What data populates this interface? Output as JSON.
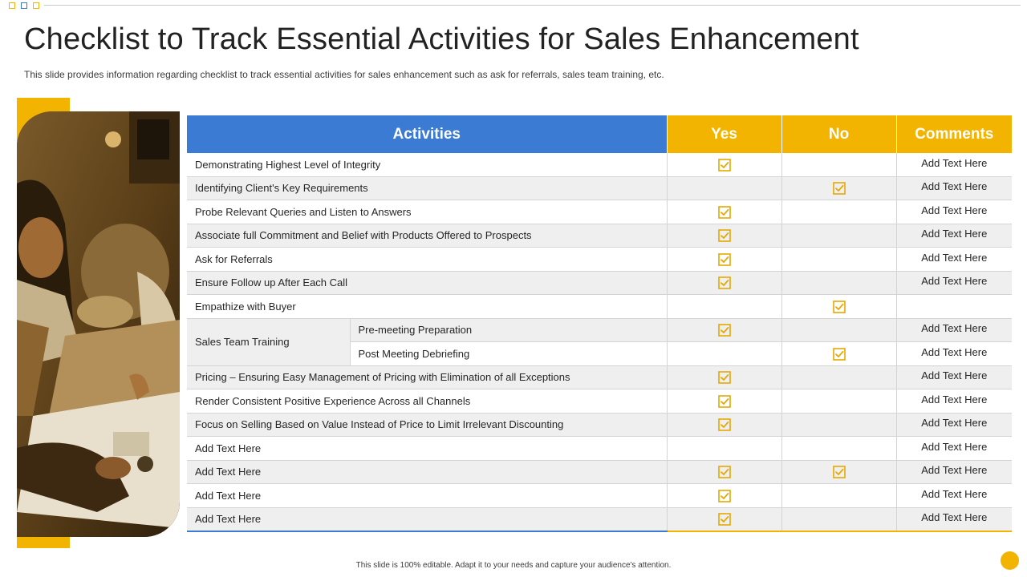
{
  "slide": {
    "title": "Checklist to Track Essential Activities for Sales Enhancement",
    "subtitle": "This slide provides information regarding checklist to track essential activities for sales enhancement such as ask for referrals, sales team training, etc.",
    "footer": "This slide is 100% editable.  Adapt it to your needs and capture your audience's attention."
  },
  "table": {
    "headers": {
      "activities": "Activities",
      "yes": "Yes",
      "no": "No",
      "comments": "Comments"
    },
    "rows": [
      {
        "activity": "Demonstrating Highest Level of Integrity",
        "yes": true,
        "no": false,
        "comment": "Add Text Here"
      },
      {
        "activity": "Identifying Client's Key Requirements",
        "yes": false,
        "no": true,
        "comment": "Add Text Here"
      },
      {
        "activity": "Probe Relevant  Queries and Listen to Answers",
        "yes": true,
        "no": false,
        "comment": "Add Text Here"
      },
      {
        "activity": "Associate full Commitment and Belief with Products Offered  to Prospects",
        "yes": true,
        "no": false,
        "comment": "Add Text Here"
      },
      {
        "activity": "Ask for Referrals",
        "yes": true,
        "no": false,
        "comment": "Add Text Here"
      },
      {
        "activity": "Ensure Follow up After Each Call",
        "yes": true,
        "no": false,
        "comment": "Add Text Here"
      },
      {
        "activity": "Empathize with Buyer",
        "yes": false,
        "no": true,
        "comment": ""
      },
      {
        "activity": "Pre-meeting Preparation",
        "yes": true,
        "no": false,
        "comment": "Add Text Here"
      },
      {
        "activity": "Post Meeting Debriefing",
        "yes": false,
        "no": true,
        "comment": "Add Text Here"
      },
      {
        "activity": "Pricing – Ensuring Easy Management of Pricing with Elimination of all Exceptions",
        "yes": true,
        "no": false,
        "comment": "Add Text Here"
      },
      {
        "activity": "Render Consistent Positive  Experience Across all Channels",
        "yes": true,
        "no": false,
        "comment": "Add Text Here"
      },
      {
        "activity": "Focus on Selling Based on Value Instead of Price to Limit Irrelevant  Discounting",
        "yes": true,
        "no": false,
        "comment": "Add Text Here"
      },
      {
        "activity": "Add Text Here",
        "yes": false,
        "no": false,
        "comment": "Add Text Here"
      },
      {
        "activity": "Add Text Here",
        "yes": true,
        "no": true,
        "comment": "Add Text Here"
      },
      {
        "activity": "Add Text Here",
        "yes": true,
        "no": false,
        "comment": "Add Text Here"
      },
      {
        "activity": "Add Text Here",
        "yes": true,
        "no": false,
        "comment": "Add Text Here"
      }
    ],
    "group": {
      "label": "Sales Team Training"
    }
  },
  "colors": {
    "accent_blue": "#3b7bd4",
    "accent_yellow": "#f2b400",
    "check": "#e6a800"
  },
  "icons": {
    "check": "checkbox-checked-icon",
    "decor_squares": "square-outline-icon"
  }
}
